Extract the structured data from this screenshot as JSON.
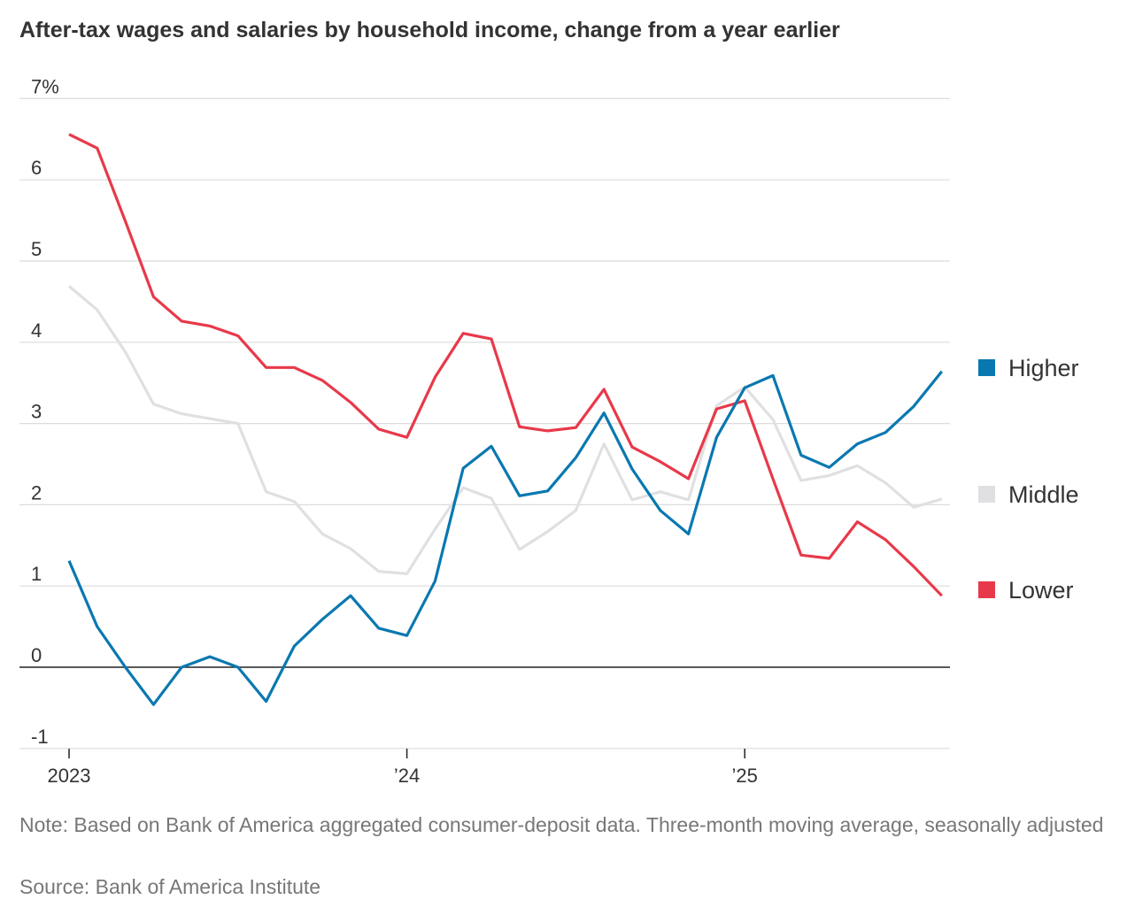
{
  "title": "After-tax wages and salaries by household income, change from a year earlier",
  "note": "Note: Based on Bank of America aggregated consumer-deposit data. Three-month moving average, seasonally adjusted",
  "source": "Source: Bank of America Institute",
  "chart_data": {
    "type": "line",
    "title": "After-tax wages and salaries by household income, change from a year earlier",
    "xlabel": "",
    "ylabel": "",
    "ylim": [
      -1,
      7
    ],
    "yticks": [
      -1,
      0,
      1,
      2,
      3,
      4,
      5,
      6,
      7
    ],
    "ytick_labels": [
      "-1",
      "0",
      "1",
      "2",
      "3",
      "4",
      "5",
      "6",
      "7%"
    ],
    "xticks": [
      {
        "index": 0,
        "label": "2023"
      },
      {
        "index": 12,
        "label": "’24"
      },
      {
        "index": 24,
        "label": "’25"
      }
    ],
    "x": [
      "2023-01",
      "2023-02",
      "2023-03",
      "2023-04",
      "2023-05",
      "2023-06",
      "2023-07",
      "2023-08",
      "2023-09",
      "2023-10",
      "2023-11",
      "2023-12",
      "2024-01",
      "2024-02",
      "2024-03",
      "2024-04",
      "2024-05",
      "2024-06",
      "2024-07",
      "2024-08",
      "2024-09",
      "2024-10",
      "2024-11",
      "2024-12",
      "2025-01",
      "2025-02",
      "2025-03",
      "2025-04",
      "2025-05",
      "2025-06",
      "2025-07",
      "2025-08"
    ],
    "grid": true,
    "legend_placement": "right",
    "series": [
      {
        "name": "Higher",
        "color": "#0a78b0",
        "values": [
          1.31,
          0.5,
          0.0,
          -0.46,
          0.0,
          0.13,
          0.0,
          -0.42,
          0.26,
          0.59,
          0.88,
          0.48,
          0.39,
          1.06,
          2.45,
          2.72,
          2.11,
          2.17,
          2.58,
          3.13,
          2.44,
          1.93,
          1.64,
          2.83,
          3.44,
          3.59,
          2.61,
          2.46,
          2.75,
          2.89,
          3.21,
          3.64
        ]
      },
      {
        "name": "Middle",
        "color": "#e0e0e2",
        "values": [
          4.69,
          4.4,
          3.88,
          3.24,
          3.12,
          3.06,
          3.0,
          2.16,
          2.04,
          1.64,
          1.46,
          1.18,
          1.15,
          1.7,
          2.21,
          2.08,
          1.45,
          1.67,
          1.93,
          2.75,
          2.06,
          2.16,
          2.06,
          3.22,
          3.45,
          3.05,
          2.3,
          2.36,
          2.48,
          2.27,
          1.97,
          2.07
        ]
      },
      {
        "name": "Lower",
        "color": "#e8394a",
        "values": [
          6.56,
          6.39,
          5.49,
          4.56,
          4.26,
          4.2,
          4.08,
          3.69,
          3.69,
          3.53,
          3.26,
          2.93,
          2.83,
          3.57,
          4.11,
          4.04,
          2.96,
          2.91,
          2.95,
          3.42,
          2.71,
          2.53,
          2.32,
          3.18,
          3.28,
          2.32,
          1.38,
          1.34,
          1.79,
          1.57,
          1.24,
          0.88
        ]
      }
    ],
    "legend_order": [
      "Higher",
      "Middle",
      "Lower"
    ]
  }
}
